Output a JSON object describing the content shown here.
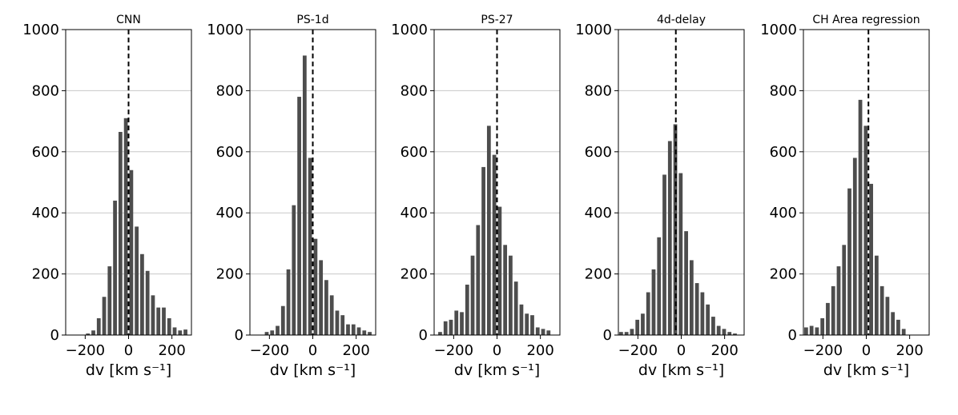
{
  "chart_data": [
    {
      "type": "bar",
      "title": "CNN",
      "xlabel": "dv [km s⁻¹]",
      "ylabel": "",
      "xlim": [
        -290,
        290
      ],
      "ylim": [
        0,
        1000
      ],
      "xticks": [
        -200,
        0,
        200
      ],
      "yticks": [
        0,
        200,
        400,
        600,
        800,
        1000
      ],
      "grid": "horizontal",
      "bin_width": 25,
      "bar_color": "#4d4d4d",
      "reference_line_x": 0,
      "bin_starts": [
        -250,
        -225,
        -200,
        -175,
        -150,
        -125,
        -100,
        -75,
        -50,
        -25,
        0,
        25,
        50,
        75,
        100,
        125,
        150,
        175,
        200,
        225,
        250,
        275
      ],
      "values": [
        0,
        0,
        5,
        15,
        55,
        125,
        225,
        440,
        665,
        710,
        540,
        355,
        265,
        210,
        130,
        90,
        90,
        55,
        25,
        15,
        18,
        0
      ]
    },
    {
      "type": "bar",
      "title": "PS-1d",
      "xlabel": "dv [km s⁻¹]",
      "ylabel": "",
      "xlim": [
        -290,
        290
      ],
      "ylim": [
        0,
        1000
      ],
      "xticks": [
        -200,
        0,
        200
      ],
      "yticks": [
        0,
        200,
        400,
        600,
        800,
        1000
      ],
      "grid": "horizontal",
      "bin_width": 25,
      "bar_color": "#4d4d4d",
      "reference_line_x": 0,
      "bin_starts": [
        -275,
        -250,
        -225,
        -200,
        -175,
        -150,
        -125,
        -100,
        -75,
        -50,
        -25,
        0,
        25,
        50,
        75,
        100,
        125,
        150,
        175,
        200,
        225,
        250,
        275
      ],
      "values": [
        0,
        0,
        10,
        15,
        30,
        95,
        215,
        425,
        780,
        915,
        580,
        315,
        245,
        180,
        130,
        80,
        65,
        35,
        35,
        25,
        15,
        10,
        0
      ]
    },
    {
      "type": "bar",
      "title": "PS-27",
      "xlabel": "dv [km s⁻¹]",
      "ylabel": "",
      "xlim": [
        -290,
        290
      ],
      "ylim": [
        0,
        1000
      ],
      "xticks": [
        -200,
        0,
        200
      ],
      "yticks": [
        0,
        200,
        400,
        600,
        800,
        1000
      ],
      "grid": "horizontal",
      "bin_width": 25,
      "bar_color": "#4d4d4d",
      "reference_line_x": 0,
      "bin_starts": [
        -275,
        -250,
        -225,
        -200,
        -175,
        -150,
        -125,
        -100,
        -75,
        -50,
        -25,
        0,
        25,
        50,
        75,
        100,
        125,
        150,
        175,
        200,
        225,
        250,
        275
      ],
      "values": [
        10,
        45,
        50,
        80,
        75,
        165,
        260,
        360,
        550,
        685,
        590,
        420,
        295,
        260,
        175,
        100,
        70,
        65,
        25,
        20,
        15,
        0,
        0
      ]
    },
    {
      "type": "bar",
      "title": "4d-delay",
      "xlabel": "dv [km s⁻¹]",
      "ylabel": "",
      "xlim": [
        -290,
        290
      ],
      "ylim": [
        0,
        1000
      ],
      "xticks": [
        -200,
        0,
        200
      ],
      "yticks": [
        0,
        200,
        400,
        600,
        800,
        1000
      ],
      "grid": "horizontal",
      "bin_width": 25,
      "bar_color": "#4d4d4d",
      "reference_line_x": -25,
      "bin_starts": [
        -290,
        -265,
        -240,
        -215,
        -190,
        -165,
        -140,
        -115,
        -90,
        -65,
        -40,
        -15,
        10,
        35,
        60,
        85,
        110,
        135,
        160,
        185,
        210,
        235,
        260
      ],
      "values": [
        10,
        10,
        20,
        50,
        70,
        140,
        215,
        320,
        525,
        635,
        690,
        530,
        340,
        245,
        170,
        140,
        100,
        60,
        30,
        20,
        10,
        5,
        0
      ]
    },
    {
      "type": "bar",
      "title": "CH Area regression",
      "xlabel": "dv [km s⁻¹]",
      "ylabel": "",
      "xlim": [
        -290,
        290
      ],
      "ylim": [
        0,
        1000
      ],
      "xticks": [
        -200,
        0,
        200
      ],
      "yticks": [
        0,
        200,
        400,
        600,
        800,
        1000
      ],
      "grid": "horizontal",
      "bin_width": 25,
      "bar_color": "#4d4d4d",
      "reference_line_x": 10,
      "bin_starts": [
        -290,
        -265,
        -240,
        -215,
        -190,
        -165,
        -140,
        -115,
        -90,
        -65,
        -40,
        -15,
        10,
        35,
        60,
        85,
        110,
        135,
        160,
        185,
        210,
        235,
        260
      ],
      "values": [
        25,
        30,
        25,
        55,
        105,
        160,
        225,
        295,
        480,
        580,
        770,
        685,
        495,
        260,
        160,
        125,
        75,
        50,
        20,
        0,
        0,
        0,
        0
      ]
    }
  ]
}
